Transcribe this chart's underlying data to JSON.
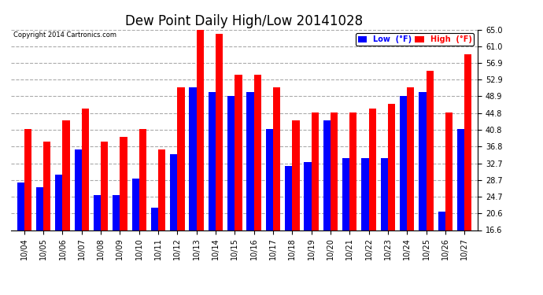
{
  "title": "Dew Point Daily High/Low 20141028",
  "copyright": "Copyright 2014 Cartronics.com",
  "dates": [
    "10/04",
    "10/05",
    "10/06",
    "10/07",
    "10/08",
    "10/09",
    "10/10",
    "10/11",
    "10/12",
    "10/13",
    "10/14",
    "10/15",
    "10/16",
    "10/17",
    "10/18",
    "10/19",
    "10/20",
    "10/21",
    "10/22",
    "10/23",
    "10/24",
    "10/25",
    "10/26",
    "10/27"
  ],
  "high": [
    41.0,
    38.0,
    43.0,
    46.0,
    38.0,
    39.0,
    41.0,
    36.0,
    51.0,
    65.0,
    64.0,
    54.0,
    54.0,
    51.0,
    43.0,
    45.0,
    45.0,
    45.0,
    46.0,
    47.0,
    51.0,
    55.0,
    45.0,
    59.0
  ],
  "low": [
    28.0,
    27.0,
    30.0,
    36.0,
    25.0,
    25.0,
    29.0,
    22.0,
    35.0,
    51.0,
    50.0,
    49.0,
    50.0,
    41.0,
    32.0,
    33.0,
    43.0,
    34.0,
    34.0,
    34.0,
    49.0,
    50.0,
    21.0,
    41.0
  ],
  "high_color": "#FF0000",
  "low_color": "#0000FF",
  "bg_color": "#FFFFFF",
  "grid_color": "#AAAAAA",
  "ylim_min": 16.6,
  "ylim_max": 65.0,
  "yticks": [
    16.6,
    20.6,
    24.7,
    28.7,
    32.7,
    36.8,
    40.8,
    44.8,
    48.9,
    52.9,
    56.9,
    61.0,
    65.0
  ],
  "title_fontsize": 12,
  "tick_fontsize": 7,
  "legend_low_label": "Low  (°F)",
  "legend_high_label": "High  (°F)",
  "bar_width": 0.38,
  "figwidth": 6.9,
  "figheight": 3.75,
  "dpi": 100
}
